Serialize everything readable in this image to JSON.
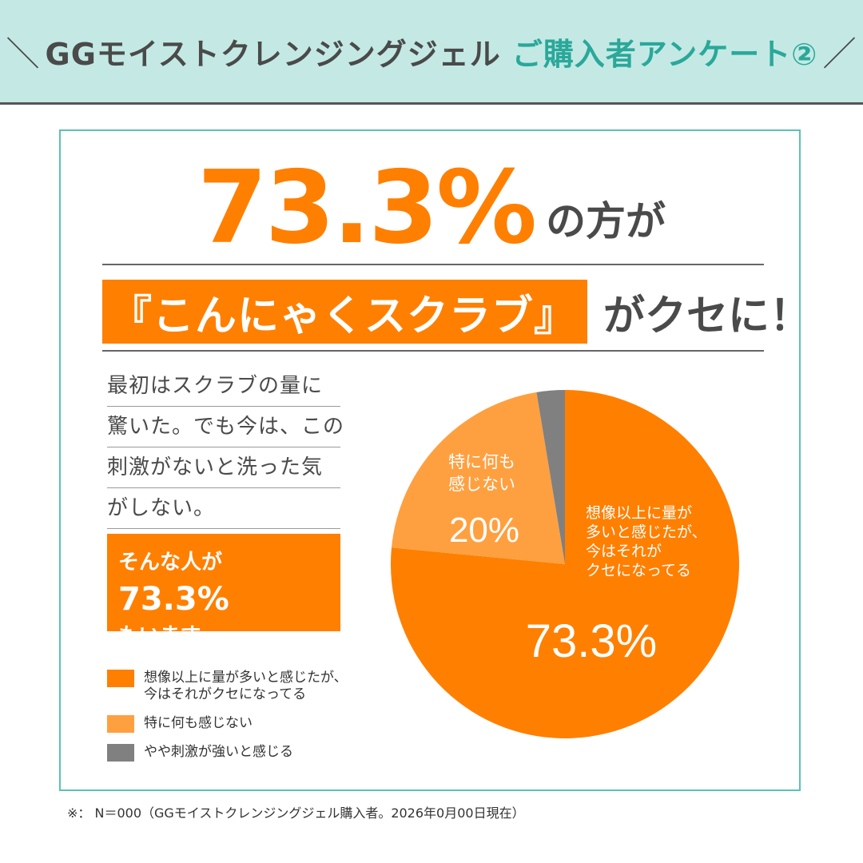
{
  "header": {
    "left_slash": "＼",
    "brand": "GGモイストクレンジングジェル",
    "survey": "ご購入者アンケート②",
    "right_slash": "／"
  },
  "headline": {
    "number": "73.3%",
    "suffix": "の方が",
    "highlight": "『こんにゃくスクラブ』",
    "tail": "がクセに！"
  },
  "comment": [
    "最初はスクラブの量に",
    "驚いた。でも今は、この",
    "刺激がないと洗った気",
    "がしない。"
  ],
  "callout": {
    "pre": "そんな人が",
    "number": "73.3%",
    "post": "もいます。"
  },
  "chart_data": {
    "type": "pie",
    "unit": "%",
    "slices": [
      {
        "name": "想像以上に量が多いと感じたが、今はそれがクセになってる",
        "value": 73.3,
        "color": "#ff7f00",
        "label_lines": [
          "想像以上に量が",
          "多いと感じたが、",
          "今はそれが",
          "クセになってる"
        ],
        "pct_label": "73.3%"
      },
      {
        "name": "特に何も感じない",
        "value": 20,
        "color": "#ffa040",
        "label_lines": [
          "特に何も",
          "感じない"
        ],
        "pct_label": "20%"
      },
      {
        "name": "やや刺激が強いと感じる",
        "value": 2.5,
        "color": "#808080",
        "label_lines": [],
        "pct_label": ""
      }
    ],
    "legend": [
      {
        "label": "想像以上に量が多いと感じたが、\n今はそれがクセになってる",
        "color": "#ff7f00"
      },
      {
        "label": "特に何も感じない",
        "color": "#ffa040"
      },
      {
        "label": "やや刺激が強いと感じる",
        "color": "#808080"
      }
    ]
  },
  "footnote": "※： N＝000（GGモイストクレンジングジェル購入者。2026年0月00日現在）"
}
